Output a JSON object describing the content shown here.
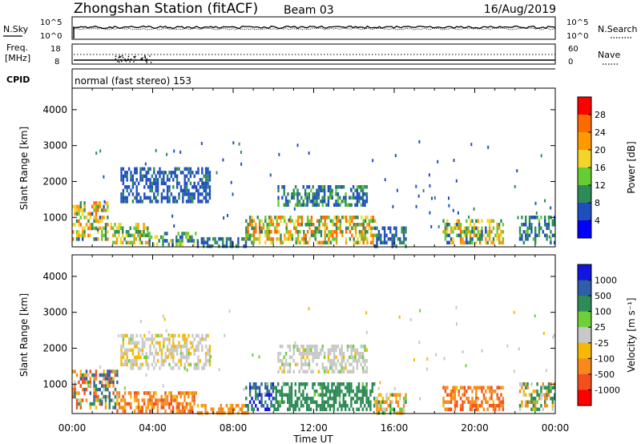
{
  "header": {
    "station": "Zhongshan Station (fitACF)",
    "beam": "Beam 03",
    "date": "16/Aug/2019"
  },
  "panel_labels": {
    "nsky": "N.Sky",
    "nsearch": "N.Search",
    "freq_line1": "Freq.",
    "freq_line2": "[MHz]",
    "nave": "Nave",
    "cpid": "CPID",
    "cpid_value": "normal (fast stereo) 153"
  },
  "noise_axes": {
    "left_ticks": [
      "10^5",
      "10^0"
    ],
    "right_ticks": [
      "10^5",
      "10^0"
    ]
  },
  "freq_axes": {
    "left_ticks": [
      "18",
      "8"
    ],
    "right_ticks": [
      "60",
      "0"
    ]
  },
  "colors": {
    "power_scale": [
      "#0000ff",
      "#1f4fbf",
      "#2e8b57",
      "#66cc33",
      "#f2d42a",
      "#ff9900",
      "#ff6a00",
      "#ff0000"
    ],
    "velocity_scale": [
      "#1414e0",
      "#2d5ea8",
      "#2e8b57",
      "#6fcf3a",
      "#c8c8c8",
      "#f6b800",
      "#f78a1a",
      "#f24f1d",
      "#ff0000"
    ]
  },
  "chart_data": [
    {
      "type": "heatmap",
      "panel": "power",
      "ylabel": "Slant Range [km]",
      "xlabel": "Time UT",
      "x_ticks": [
        "00:00",
        "04:00",
        "08:00",
        "12:00",
        "16:00",
        "20:00",
        "00:00"
      ],
      "xlim_hours": [
        0,
        24
      ],
      "y_ticks": [
        "1000",
        "2000",
        "3000",
        "4000"
      ],
      "ylim_km": [
        180,
        4600
      ],
      "colorbar": {
        "label": "Power [dB]",
        "ticks": [
          "4",
          "8",
          "12",
          "16",
          "20",
          "24",
          "28"
        ],
        "range": [
          0,
          32
        ]
      },
      "regions": [
        {
          "t": [
            0.0,
            1.8
          ],
          "r": [
            350,
            1450
          ],
          "v": [
            6,
            26
          ]
        },
        {
          "t": [
            1.8,
            3.8
          ],
          "r": [
            250,
            850
          ],
          "v": [
            8,
            24
          ]
        },
        {
          "t": [
            3.8,
            6.2
          ],
          "r": [
            230,
            600
          ],
          "v": [
            6,
            18
          ]
        },
        {
          "t": [
            6.2,
            8.7
          ],
          "r": [
            230,
            450
          ],
          "v": [
            4,
            12
          ]
        },
        {
          "t": [
            2.4,
            6.8
          ],
          "r": [
            1400,
            2400
          ],
          "v": [
            4,
            9
          ]
        },
        {
          "t": [
            8.6,
            15.0
          ],
          "r": [
            330,
            1050
          ],
          "v": [
            8,
            28
          ]
        },
        {
          "t": [
            10.2,
            14.6
          ],
          "r": [
            1300,
            1900
          ],
          "v": [
            4,
            14
          ]
        },
        {
          "t": [
            15.0,
            16.6
          ],
          "r": [
            230,
            750
          ],
          "v": [
            4,
            12
          ]
        },
        {
          "t": [
            18.4,
            21.4
          ],
          "r": [
            280,
            950
          ],
          "v": [
            6,
            26
          ]
        },
        {
          "t": [
            22.2,
            24.0
          ],
          "r": [
            250,
            1050
          ],
          "v": [
            4,
            14
          ]
        }
      ]
    },
    {
      "type": "heatmap",
      "panel": "velocity",
      "ylabel": "Slant Range [km]",
      "xlabel": "Time UT",
      "x_ticks": [
        "00:00",
        "04:00",
        "08:00",
        "12:00",
        "16:00",
        "20:00",
        "00:00"
      ],
      "xlim_hours": [
        0,
        24
      ],
      "y_ticks": [
        "1000",
        "2000",
        "3000",
        "4000"
      ],
      "ylim_km": [
        180,
        4600
      ],
      "colorbar": {
        "label": "Velocity [m s^-1]",
        "ticks": [
          "1000",
          "500",
          "100",
          "25",
          "-25",
          "-100",
          "-500",
          "-1000"
        ]
      },
      "regions": [
        {
          "t": [
            0.0,
            2.2
          ],
          "r": [
            300,
            1400
          ],
          "v": [
            -500,
            600
          ]
        },
        {
          "t": [
            2.2,
            6.2
          ],
          "r": [
            230,
            800
          ],
          "v": [
            -400,
            -60
          ]
        },
        {
          "t": [
            6.2,
            8.7
          ],
          "r": [
            230,
            450
          ],
          "v": [
            -300,
            -40
          ]
        },
        {
          "t": [
            2.4,
            6.8
          ],
          "r": [
            1400,
            2400
          ],
          "v": [
            -50,
            30
          ]
        },
        {
          "t": [
            8.6,
            10.0
          ],
          "r": [
            330,
            1050
          ],
          "v": [
            100,
            900
          ]
        },
        {
          "t": [
            10.0,
            15.0
          ],
          "r": [
            330,
            1050
          ],
          "v": [
            50,
            300
          ]
        },
        {
          "t": [
            10.2,
            14.6
          ],
          "r": [
            1300,
            2100
          ],
          "v": [
            -30,
            30
          ]
        },
        {
          "t": [
            15.0,
            16.6
          ],
          "r": [
            230,
            750
          ],
          "v": [
            -200,
            100
          ]
        },
        {
          "t": [
            18.4,
            21.4
          ],
          "r": [
            280,
            950
          ],
          "v": [
            -450,
            -80
          ]
        },
        {
          "t": [
            22.2,
            24.0
          ],
          "r": [
            250,
            1050
          ],
          "v": [
            -200,
            300
          ]
        }
      ]
    }
  ]
}
